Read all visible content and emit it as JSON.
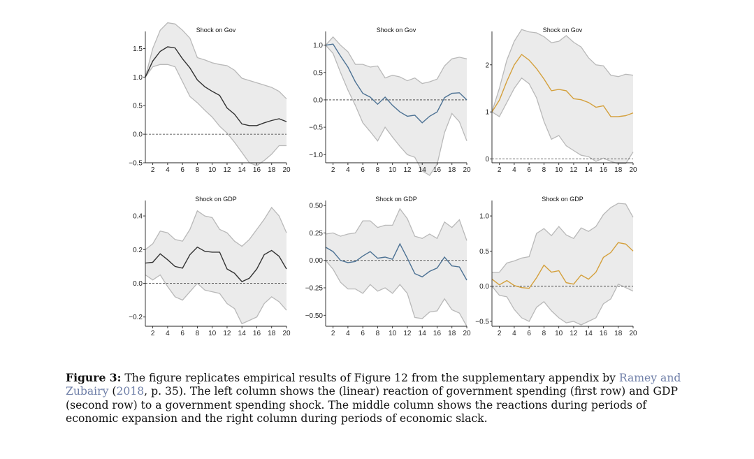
{
  "chart_data": [
    {
      "type": "line",
      "title": "Shock on Gov",
      "color": "#333333",
      "ylim": [
        -0.5,
        1.75
      ],
      "yticks": [
        -0.5,
        0.0,
        0.5,
        1.0,
        1.5
      ],
      "ytick_labels": [
        "−0.5",
        "0.0",
        "0.5",
        "1.0",
        "1.5"
      ],
      "xlim": [
        1,
        20
      ],
      "xticks": [
        2,
        4,
        6,
        8,
        10,
        12,
        14,
        16,
        18,
        20
      ],
      "x": [
        1,
        2,
        3,
        4,
        5,
        6,
        7,
        8,
        9,
        10,
        11,
        12,
        13,
        14,
        15,
        16,
        17,
        18,
        19,
        20
      ],
      "series": [
        {
          "role": "estimate",
          "values": [
            1.0,
            1.28,
            1.45,
            1.53,
            1.51,
            1.32,
            1.16,
            0.95,
            0.83,
            0.75,
            0.68,
            0.46,
            0.35,
            0.18,
            0.15,
            0.15,
            0.2,
            0.24,
            0.27,
            0.22
          ]
        },
        {
          "role": "upper",
          "values": [
            1.0,
            1.5,
            1.82,
            1.95,
            1.93,
            1.82,
            1.68,
            1.34,
            1.3,
            1.25,
            1.22,
            1.2,
            1.12,
            0.98,
            0.94,
            0.9,
            0.86,
            0.82,
            0.75,
            0.62
          ]
        },
        {
          "role": "lower",
          "values": [
            1.0,
            1.18,
            1.22,
            1.22,
            1.18,
            0.92,
            0.66,
            0.55,
            0.42,
            0.3,
            0.14,
            0.02,
            -0.14,
            -0.32,
            -0.5,
            -0.55,
            -0.46,
            -0.35,
            -0.2,
            -0.2
          ]
        }
      ]
    },
    {
      "type": "line",
      "title": "Shock on Gov",
      "color": "#4d7294",
      "ylim": [
        -1.15,
        1.2
      ],
      "yticks": [
        -1.0,
        -0.5,
        0.0,
        0.5,
        1.0
      ],
      "ytick_labels": [
        "−1.0",
        "−0.5",
        "0.0",
        "0.5",
        "1.0"
      ],
      "xlim": [
        1,
        20
      ],
      "xticks": [
        2,
        4,
        6,
        8,
        10,
        12,
        14,
        16,
        18,
        20
      ],
      "x": [
        1,
        2,
        3,
        4,
        5,
        6,
        7,
        8,
        9,
        10,
        11,
        12,
        13,
        14,
        15,
        16,
        17,
        18,
        19,
        20
      ],
      "series": [
        {
          "role": "estimate",
          "values": [
            1.0,
            1.02,
            0.8,
            0.6,
            0.33,
            0.12,
            0.05,
            -0.08,
            0.05,
            -0.1,
            -0.22,
            -0.3,
            -0.28,
            -0.42,
            -0.3,
            -0.22,
            0.04,
            0.12,
            0.13,
            0.0
          ]
        },
        {
          "role": "upper",
          "values": [
            1.0,
            1.15,
            1.0,
            0.88,
            0.65,
            0.65,
            0.6,
            0.62,
            0.4,
            0.45,
            0.42,
            0.35,
            0.4,
            0.3,
            0.33,
            0.38,
            0.62,
            0.75,
            0.78,
            0.75
          ]
        },
        {
          "role": "lower",
          "values": [
            1.0,
            0.85,
            0.5,
            0.18,
            -0.1,
            -0.42,
            -0.58,
            -0.75,
            -0.5,
            -0.68,
            -0.85,
            -1.0,
            -1.05,
            -1.3,
            -1.38,
            -1.18,
            -0.6,
            -0.25,
            -0.4,
            -0.75
          ]
        }
      ]
    },
    {
      "type": "line",
      "title": "Shock on Gov",
      "color": "#d4a03c",
      "ylim": [
        -0.08,
        2.65
      ],
      "yticks": [
        0,
        1,
        2
      ],
      "ytick_labels": [
        "0",
        "1",
        "2"
      ],
      "xlim": [
        1,
        20
      ],
      "xticks": [
        2,
        4,
        6,
        8,
        10,
        12,
        14,
        16,
        18,
        20
      ],
      "x": [
        1,
        2,
        3,
        4,
        5,
        6,
        7,
        8,
        9,
        10,
        11,
        12,
        13,
        14,
        15,
        16,
        17,
        18,
        19,
        20
      ],
      "series": [
        {
          "role": "estimate",
          "values": [
            1.0,
            1.25,
            1.65,
            2.0,
            2.22,
            2.1,
            1.92,
            1.7,
            1.45,
            1.48,
            1.45,
            1.28,
            1.26,
            1.2,
            1.1,
            1.13,
            0.9,
            0.9,
            0.92,
            0.98
          ]
        },
        {
          "role": "upper",
          "values": [
            1.0,
            1.5,
            2.1,
            2.5,
            2.75,
            2.7,
            2.68,
            2.6,
            2.47,
            2.5,
            2.62,
            2.48,
            2.38,
            2.15,
            2.0,
            1.98,
            1.78,
            1.75,
            1.8,
            1.78
          ]
        },
        {
          "role": "lower",
          "values": [
            1.0,
            0.9,
            1.2,
            1.5,
            1.72,
            1.6,
            1.3,
            0.8,
            0.42,
            0.5,
            0.28,
            0.18,
            0.08,
            0.05,
            -0.05,
            0.02,
            -0.05,
            -0.1,
            -0.1,
            0.15
          ]
        }
      ]
    },
    {
      "type": "line",
      "title": "Shock on GDP",
      "color": "#333333",
      "ylim": [
        -0.255,
        0.475
      ],
      "yticks": [
        -0.2,
        0.0,
        0.2,
        0.4
      ],
      "ytick_labels": [
        "−0.2",
        "0.0",
        "0.2",
        "0.4"
      ],
      "xlim": [
        1,
        20
      ],
      "xticks": [
        2,
        4,
        6,
        8,
        10,
        12,
        14,
        16,
        18,
        20
      ],
      "x": [
        1,
        2,
        3,
        4,
        5,
        6,
        7,
        8,
        9,
        10,
        11,
        12,
        13,
        14,
        15,
        16,
        17,
        18,
        19,
        20
      ],
      "series": [
        {
          "role": "estimate",
          "values": [
            0.12,
            0.125,
            0.175,
            0.14,
            0.1,
            0.09,
            0.17,
            0.215,
            0.19,
            0.185,
            0.185,
            0.085,
            0.06,
            0.01,
            0.03,
            0.085,
            0.17,
            0.195,
            0.16,
            0.085
          ]
        },
        {
          "role": "upper",
          "values": [
            0.2,
            0.235,
            0.31,
            0.3,
            0.26,
            0.25,
            0.32,
            0.43,
            0.4,
            0.39,
            0.32,
            0.3,
            0.25,
            0.22,
            0.26,
            0.32,
            0.38,
            0.45,
            0.4,
            0.3
          ]
        },
        {
          "role": "lower",
          "values": [
            0.05,
            0.02,
            0.05,
            -0.02,
            -0.08,
            -0.1,
            -0.05,
            0.0,
            -0.04,
            -0.05,
            -0.06,
            -0.12,
            -0.15,
            -0.24,
            -0.22,
            -0.2,
            -0.12,
            -0.08,
            -0.11,
            -0.16
          ]
        }
      ]
    },
    {
      "type": "line",
      "title": "Shock on GDP",
      "color": "#4d7294",
      "ylim": [
        -0.6,
        0.52
      ],
      "yticks": [
        -0.5,
        -0.25,
        0.0,
        0.25,
        0.5
      ],
      "ytick_labels": [
        "−0.50",
        "−0.25",
        "0.00",
        "0.25",
        "0.50"
      ],
      "xlim": [
        1,
        20
      ],
      "xticks": [
        2,
        4,
        6,
        8,
        10,
        12,
        14,
        16,
        18,
        20
      ],
      "x": [
        1,
        2,
        3,
        4,
        5,
        6,
        7,
        8,
        9,
        10,
        11,
        12,
        13,
        14,
        15,
        16,
        17,
        18,
        19,
        20
      ],
      "series": [
        {
          "role": "estimate",
          "values": [
            0.12,
            0.08,
            0.0,
            -0.02,
            -0.01,
            0.04,
            0.08,
            0.02,
            0.03,
            0.01,
            0.15,
            0.02,
            -0.12,
            -0.15,
            -0.1,
            -0.07,
            0.03,
            -0.05,
            -0.06,
            -0.18
          ]
        },
        {
          "role": "upper",
          "values": [
            0.24,
            0.25,
            0.22,
            0.24,
            0.25,
            0.36,
            0.36,
            0.3,
            0.32,
            0.32,
            0.47,
            0.38,
            0.22,
            0.2,
            0.24,
            0.2,
            0.35,
            0.3,
            0.37,
            0.18
          ]
        },
        {
          "role": "lower",
          "values": [
            0.0,
            -0.08,
            -0.2,
            -0.26,
            -0.26,
            -0.3,
            -0.22,
            -0.28,
            -0.25,
            -0.3,
            -0.22,
            -0.3,
            -0.52,
            -0.53,
            -0.47,
            -0.46,
            -0.35,
            -0.45,
            -0.48,
            -0.6
          ]
        }
      ]
    },
    {
      "type": "line",
      "title": "Shock on GDP",
      "color": "#d4a03c",
      "ylim": [
        -0.57,
        1.18
      ],
      "yticks": [
        -0.5,
        0.0,
        0.5,
        1.0
      ],
      "ytick_labels": [
        "−0.5",
        "0.0",
        "0.5",
        "1.0"
      ],
      "xlim": [
        1,
        20
      ],
      "xticks": [
        2,
        4,
        6,
        8,
        10,
        12,
        14,
        16,
        18,
        20
      ],
      "x": [
        1,
        2,
        3,
        4,
        5,
        6,
        7,
        8,
        9,
        10,
        11,
        12,
        13,
        14,
        15,
        16,
        17,
        18,
        19,
        20
      ],
      "series": [
        {
          "role": "estimate",
          "values": [
            0.1,
            0.02,
            0.08,
            0.01,
            -0.02,
            -0.03,
            0.12,
            0.3,
            0.2,
            0.22,
            0.05,
            0.03,
            0.16,
            0.1,
            0.2,
            0.41,
            0.48,
            0.62,
            0.6,
            0.5
          ]
        },
        {
          "role": "upper",
          "values": [
            0.2,
            0.2,
            0.33,
            0.36,
            0.4,
            0.42,
            0.75,
            0.82,
            0.72,
            0.85,
            0.73,
            0.68,
            0.83,
            0.78,
            0.85,
            1.02,
            1.12,
            1.18,
            1.17,
            0.98
          ]
        },
        {
          "role": "lower",
          "values": [
            0.0,
            -0.13,
            -0.15,
            -0.33,
            -0.45,
            -0.5,
            -0.3,
            -0.22,
            -0.35,
            -0.45,
            -0.52,
            -0.5,
            -0.55,
            -0.5,
            -0.45,
            -0.25,
            -0.18,
            0.03,
            -0.02,
            -0.07
          ]
        }
      ]
    }
  ],
  "caption": {
    "label": "Figure 3:",
    "text_1": "The figure replicates empirical results of Figure 12 from the supplementary appendix by",
    "cite_author": "Ramey and Zubairy",
    "cite_open": "(",
    "cite_year": "2018",
    "text_2": ", p. 35). The left column shows the (linear) reaction of government spending (first row) and GDP (second row) to a government spending shock. The middle column shows the reactions during periods of economic expansion and the right column during periods of economic slack."
  }
}
